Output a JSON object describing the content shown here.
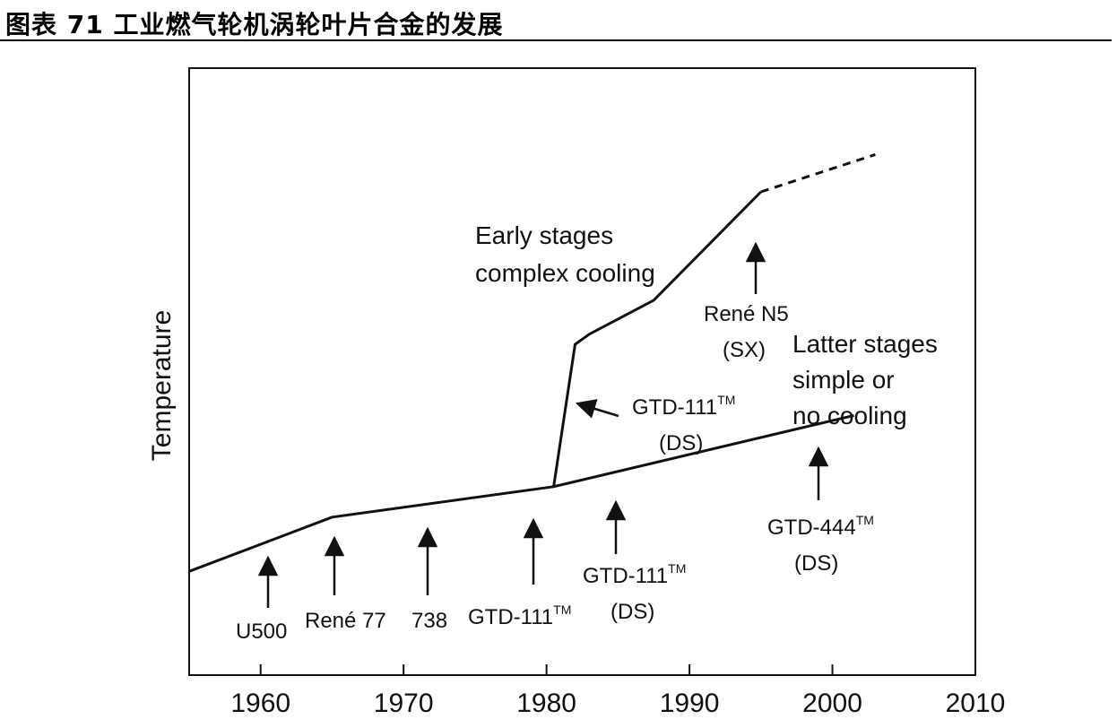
{
  "figure": {
    "title": "图表 71 工业燃气轮机涡轮叶片合金的发展"
  },
  "chart_data": {
    "type": "line",
    "xlabel": "",
    "ylabel": "Temperature",
    "xlim": [
      1955,
      2010
    ],
    "x_ticks": [
      "1960",
      "1970",
      "1980",
      "1990",
      "2000",
      "2010"
    ],
    "y_ticks": [],
    "grid": false,
    "series": [
      {
        "name": "Latter stages simple or no cooling",
        "x": [
          1955,
          1960,
          1965,
          1980.5,
          2001.5
        ],
        "y": [
          0.06,
          0.14,
          0.22,
          0.31,
          0.52
        ],
        "style": "solid"
      },
      {
        "name": "Early stages complex cooling",
        "x": [
          1980.5,
          1982,
          1983,
          1987.5,
          1995
        ],
        "y": [
          0.31,
          0.73,
          0.76,
          0.86,
          1.18
        ],
        "style": "solid"
      },
      {
        "name": "",
        "x": [
          1995,
          2003
        ],
        "y": [
          1.18,
          1.29
        ],
        "style": "dashed"
      }
    ],
    "annotations": [
      {
        "id": "u500",
        "lines": [
          "U500"
        ],
        "x": 1961,
        "superscript_tm": false
      },
      {
        "id": "rene77",
        "lines": [
          "René 77"
        ],
        "x": 1965.5,
        "superscript_tm": false
      },
      {
        "id": "a738",
        "lines": [
          "738"
        ],
        "x": 1972,
        "superscript_tm": false
      },
      {
        "id": "gtd111",
        "lines": [
          "GTD-111"
        ],
        "x": 1979.5,
        "superscript_tm": true
      },
      {
        "id": "gtd111ds_lower",
        "lines": [
          "GTD-111",
          "(DS)"
        ],
        "x": 1985.5,
        "superscript_tm": true
      },
      {
        "id": "gtd444ds",
        "lines": [
          "GTD-444",
          "(DS)"
        ],
        "x": 2000,
        "superscript_tm": true
      },
      {
        "id": "gtd111ds_upper",
        "lines": [
          "GTD-111",
          "(DS)"
        ],
        "x": 1982.5,
        "superscript_tm": true
      },
      {
        "id": "renen5",
        "lines": [
          "René N5",
          "(SX)"
        ],
        "x": 1995,
        "superscript_tm": false
      }
    ],
    "region_labels": [
      {
        "id": "early",
        "lines": [
          "Early stages",
          "complex cooling"
        ]
      },
      {
        "id": "latter",
        "lines": [
          "Latter stages",
          "simple or",
          "no cooling"
        ]
      }
    ],
    "tm_mark": "TM"
  }
}
